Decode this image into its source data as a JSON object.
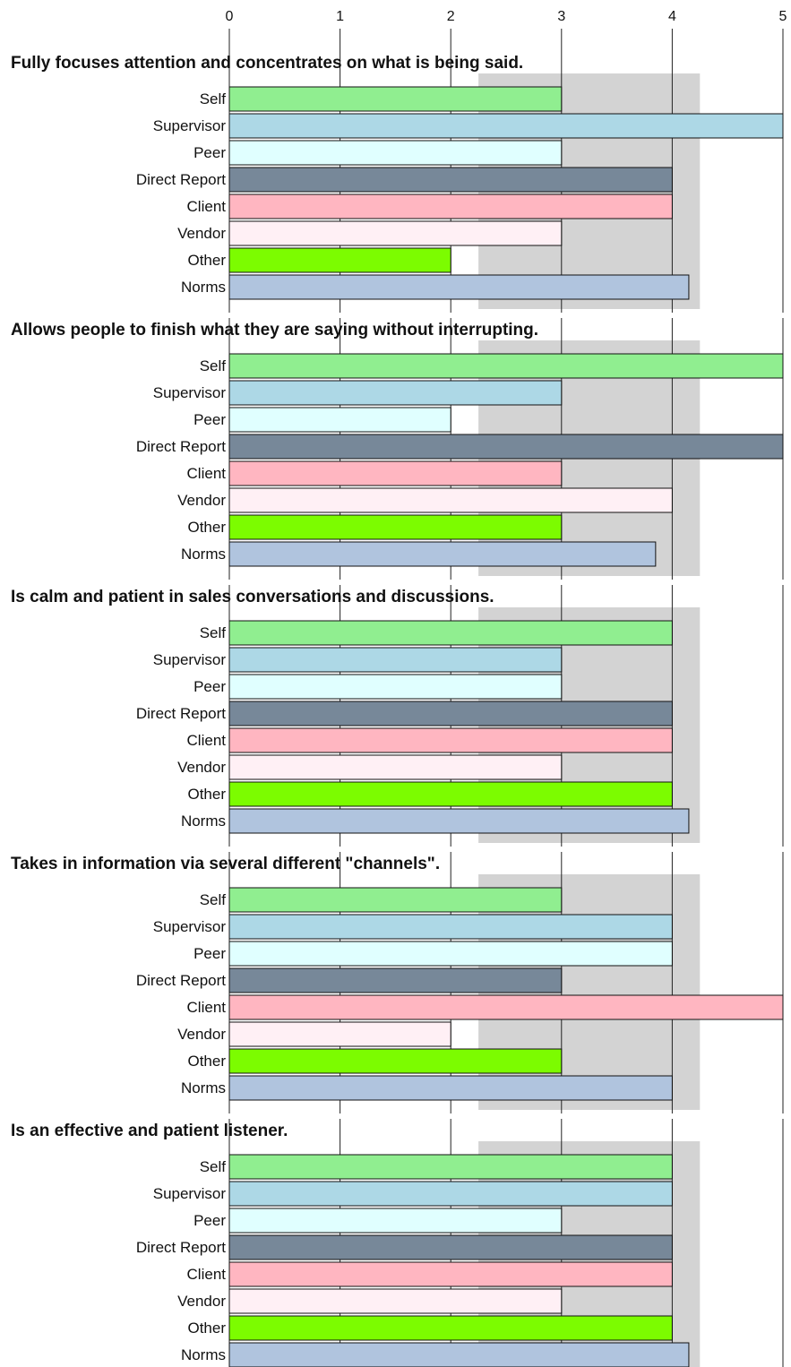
{
  "chart_data": [
    {
      "type": "hbar",
      "title": "Fully focuses attention and concentrates on what is being said.",
      "categories": [
        "Self",
        "Supervisor",
        "Peer",
        "Direct Report",
        "Client",
        "Vendor",
        "Other",
        "Norms"
      ],
      "values": [
        3,
        5,
        3,
        4,
        4,
        3,
        2,
        4.15
      ],
      "colors": [
        "#90ee90",
        "#add8e6",
        "#e0ffff",
        "#778899",
        "#ffb6c1",
        "#fff0f5",
        "#7cfc00",
        "#b0c4de"
      ],
      "xlim": [
        0,
        5
      ],
      "xticks": [
        0,
        1,
        2,
        3,
        4,
        5
      ],
      "shaded_range": [
        2.25,
        4.25
      ]
    },
    {
      "type": "hbar",
      "title": "Allows people to finish what they are saying without interrupting.",
      "categories": [
        "Self",
        "Supervisor",
        "Peer",
        "Direct Report",
        "Client",
        "Vendor",
        "Other",
        "Norms"
      ],
      "values": [
        5,
        3,
        2,
        5,
        3,
        4,
        3,
        3.85
      ],
      "colors": [
        "#90ee90",
        "#add8e6",
        "#e0ffff",
        "#778899",
        "#ffb6c1",
        "#fff0f5",
        "#7cfc00",
        "#b0c4de"
      ],
      "xlim": [
        0,
        5
      ],
      "xticks": [
        0,
        1,
        2,
        3,
        4,
        5
      ],
      "shaded_range": [
        2.25,
        4.25
      ]
    },
    {
      "type": "hbar",
      "title": "Is calm and patient in sales conversations and discussions.",
      "categories": [
        "Self",
        "Supervisor",
        "Peer",
        "Direct Report",
        "Client",
        "Vendor",
        "Other",
        "Norms"
      ],
      "values": [
        4,
        3,
        3,
        4,
        4,
        3,
        4,
        4.15
      ],
      "colors": [
        "#90ee90",
        "#add8e6",
        "#e0ffff",
        "#778899",
        "#ffb6c1",
        "#fff0f5",
        "#7cfc00",
        "#b0c4de"
      ],
      "xlim": [
        0,
        5
      ],
      "xticks": [
        0,
        1,
        2,
        3,
        4,
        5
      ],
      "shaded_range": [
        2.25,
        4.25
      ]
    },
    {
      "type": "hbar",
      "title": "Takes in information via several different \"channels\".",
      "categories": [
        "Self",
        "Supervisor",
        "Peer",
        "Direct Report",
        "Client",
        "Vendor",
        "Other",
        "Norms"
      ],
      "values": [
        3,
        4,
        4,
        3,
        5,
        2,
        3,
        4
      ],
      "colors": [
        "#90ee90",
        "#add8e6",
        "#e0ffff",
        "#778899",
        "#ffb6c1",
        "#fff0f5",
        "#7cfc00",
        "#b0c4de"
      ],
      "xlim": [
        0,
        5
      ],
      "xticks": [
        0,
        1,
        2,
        3,
        4,
        5
      ],
      "shaded_range": [
        2.25,
        4.25
      ]
    },
    {
      "type": "hbar",
      "title": "Is an effective and patient listener.",
      "categories": [
        "Self",
        "Supervisor",
        "Peer",
        "Direct Report",
        "Client",
        "Vendor",
        "Other",
        "Norms"
      ],
      "values": [
        4,
        4,
        3,
        4,
        4,
        3,
        4,
        4.15
      ],
      "colors": [
        "#90ee90",
        "#add8e6",
        "#e0ffff",
        "#778899",
        "#ffb6c1",
        "#fff0f5",
        "#7cfc00",
        "#b0c4de"
      ],
      "xlim": [
        0,
        5
      ],
      "xticks": [
        0,
        1,
        2,
        3,
        4,
        5
      ],
      "shaded_range": [
        2.25,
        4.25
      ]
    }
  ]
}
